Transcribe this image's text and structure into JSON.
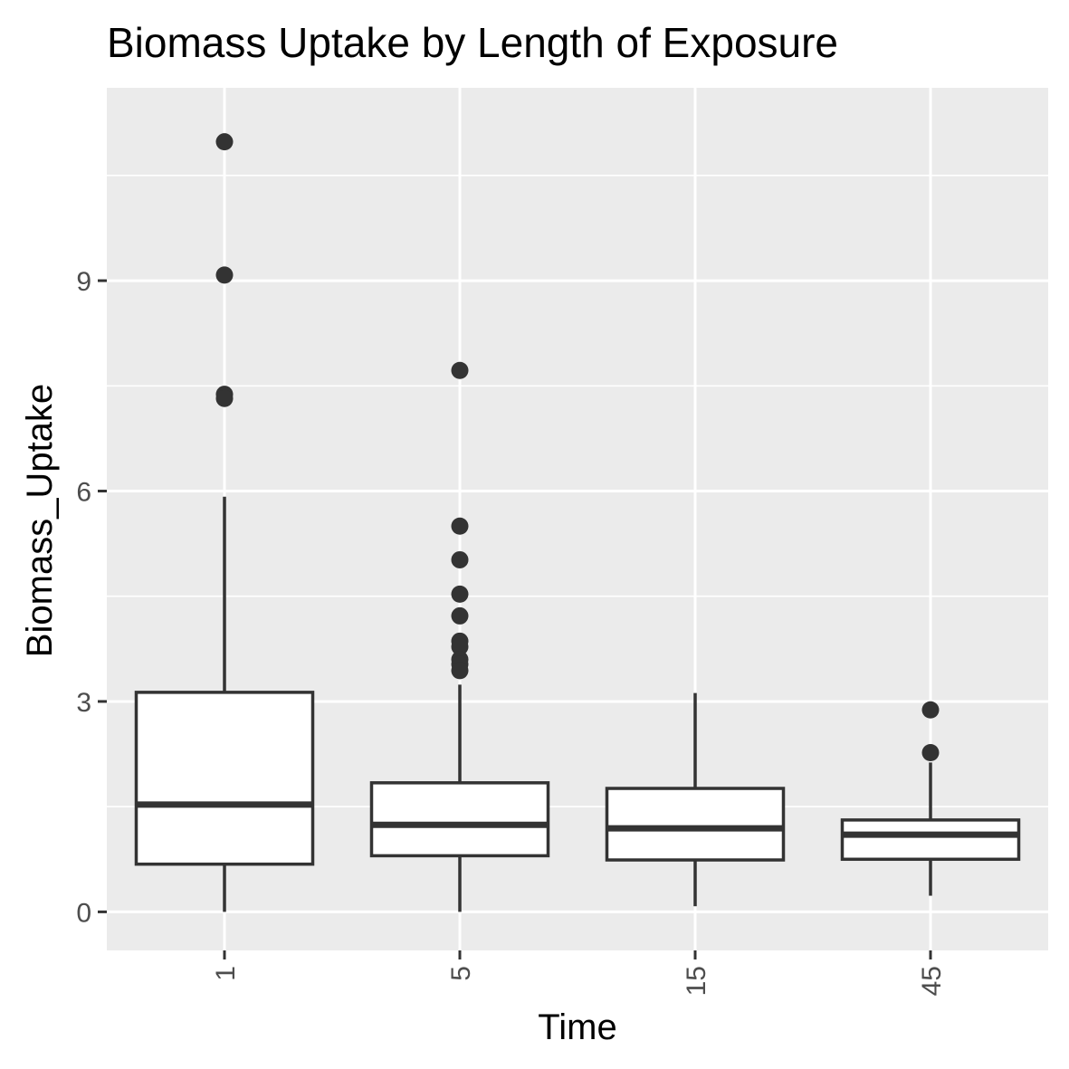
{
  "chart_data": {
    "type": "box",
    "title": "Biomass Uptake by Length of Exposure",
    "xlabel": "Time",
    "ylabel": "Biomass_Uptake",
    "categories": [
      "1",
      "5",
      "15",
      "45"
    ],
    "ylim": [
      -0.55,
      11.75
    ],
    "yticks": [
      0,
      3,
      6,
      9
    ],
    "grid": true,
    "x_tick_labels_rotated": true,
    "colors": {
      "panel": "#ebebeb",
      "grid": "#ffffff",
      "box_fill": "#ffffff",
      "box_stroke": "#333333",
      "outlier": "#333333",
      "tick": "#333333"
    },
    "boxes": [
      {
        "category": "1",
        "whisker_low": 0.0,
        "q1": 0.68,
        "median": 1.53,
        "q3": 3.13,
        "whisker_high": 5.92,
        "outliers": [
          10.98,
          9.08,
          7.38,
          7.32
        ]
      },
      {
        "category": "5",
        "whisker_low": 0.0,
        "q1": 0.8,
        "median": 1.24,
        "q3": 1.84,
        "whisker_high": 3.24,
        "outliers": [
          7.72,
          5.5,
          5.02,
          4.53,
          4.22,
          3.86,
          3.78,
          3.6,
          3.53,
          3.44
        ]
      },
      {
        "category": "15",
        "whisker_low": 0.08,
        "q1": 0.74,
        "median": 1.19,
        "q3": 1.76,
        "whisker_high": 3.12,
        "outliers": []
      },
      {
        "category": "45",
        "whisker_low": 0.23,
        "q1": 0.75,
        "median": 1.1,
        "q3": 1.31,
        "whisker_high": 2.13,
        "outliers": [
          2.88,
          2.27
        ]
      }
    ]
  }
}
